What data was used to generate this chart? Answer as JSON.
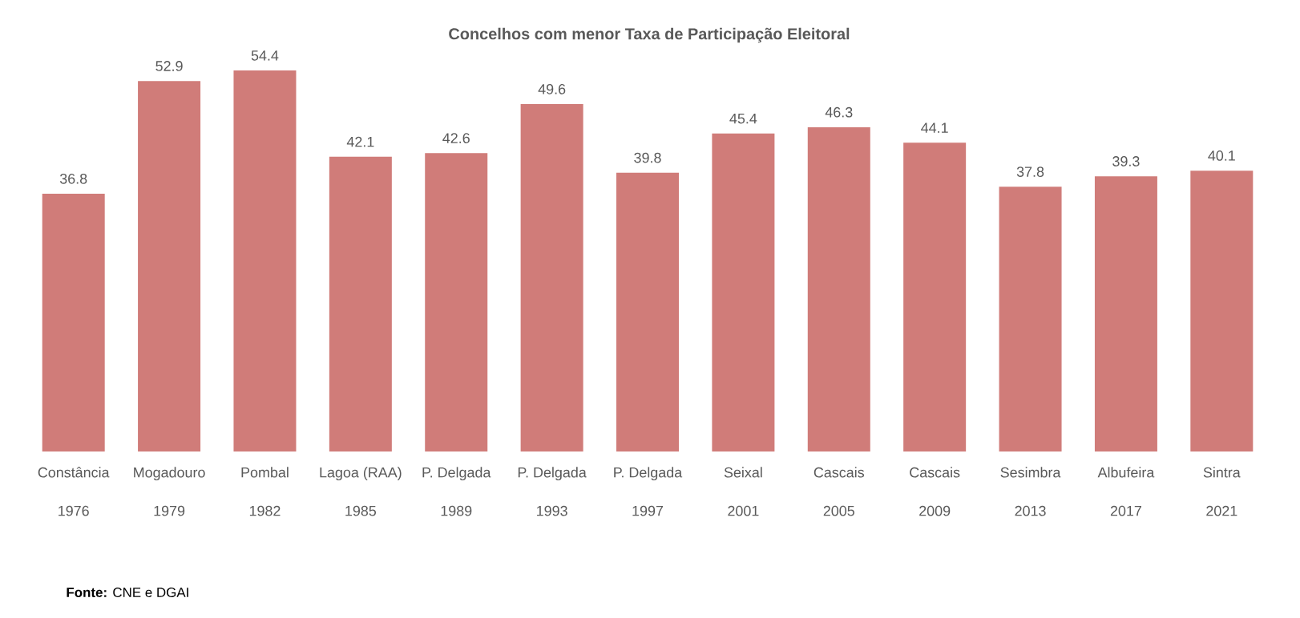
{
  "chart_data": {
    "type": "bar",
    "title": "Concelhos com menor Taxa de Participação Eleitoral",
    "categories": [
      "Constância 1976",
      "Mogadouro 1979",
      "Pombal 1982",
      "Lagoa (RAA) 1985",
      "P. Delgada 1989",
      "P. Delgada 1993",
      "P. Delgada 1997",
      "Seixal 2001",
      "Cascais 2005",
      "Cascais 2009",
      "Sesimbra 2013",
      "Albufeira 2017",
      "Sintra 2021"
    ],
    "values": [
      36.8,
      52.9,
      54.4,
      42.1,
      42.6,
      49.6,
      39.8,
      45.4,
      46.3,
      44.1,
      37.8,
      39.3,
      40.1
    ],
    "color": "#d07c79",
    "data_labels": true,
    "annotations": [
      "**Fonte:** CNE e DGAI"
    ]
  }
}
